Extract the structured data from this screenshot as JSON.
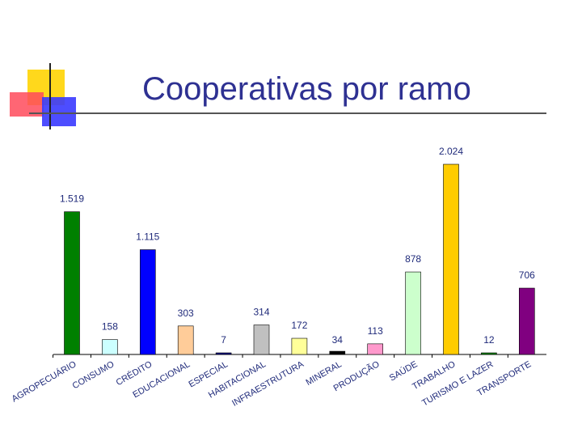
{
  "slide": {
    "title": "Cooperativas por ramo"
  },
  "colors": {
    "title": "#2e3192",
    "axis": "#000000",
    "label_text": "#1f2a7a",
    "deco_yellow": "#ffd81c",
    "deco_red": "#ff4b5c",
    "deco_blue": "#3a3aff"
  },
  "chart_data": {
    "type": "bar",
    "title": "",
    "xlabel": "",
    "ylabel": "",
    "grid": false,
    "legend": "none",
    "ylim": [
      0,
      2100
    ],
    "categories": [
      "AGROPECUÁRIO",
      "CONSUMO",
      "CRÉDITO",
      "EDUCACIONAL",
      "ESPECIAL",
      "HABITACIONAL",
      "INFRAESTRUTURA",
      "MINERAL",
      "PRODUÇÃO",
      "SAÚDE",
      "TRABALHO",
      "TURISMO E LAZER",
      "TRANSPORTE"
    ],
    "values": [
      1519,
      158,
      1115,
      303,
      7,
      314,
      172,
      34,
      113,
      878,
      2024,
      12,
      706
    ],
    "value_labels": [
      "1.519",
      "158",
      "1.115",
      "303",
      "7",
      "314",
      "172",
      "34",
      "113",
      "878",
      "2.024",
      "12",
      "706"
    ],
    "bar_colors": [
      "#008000",
      "#ccffff",
      "#0000ff",
      "#ffcc99",
      "#000080",
      "#c0c0c0",
      "#ffff99",
      "#000000",
      "#ff99cc",
      "#ccffcc",
      "#ffcc00",
      "#008000",
      "#800080"
    ]
  }
}
